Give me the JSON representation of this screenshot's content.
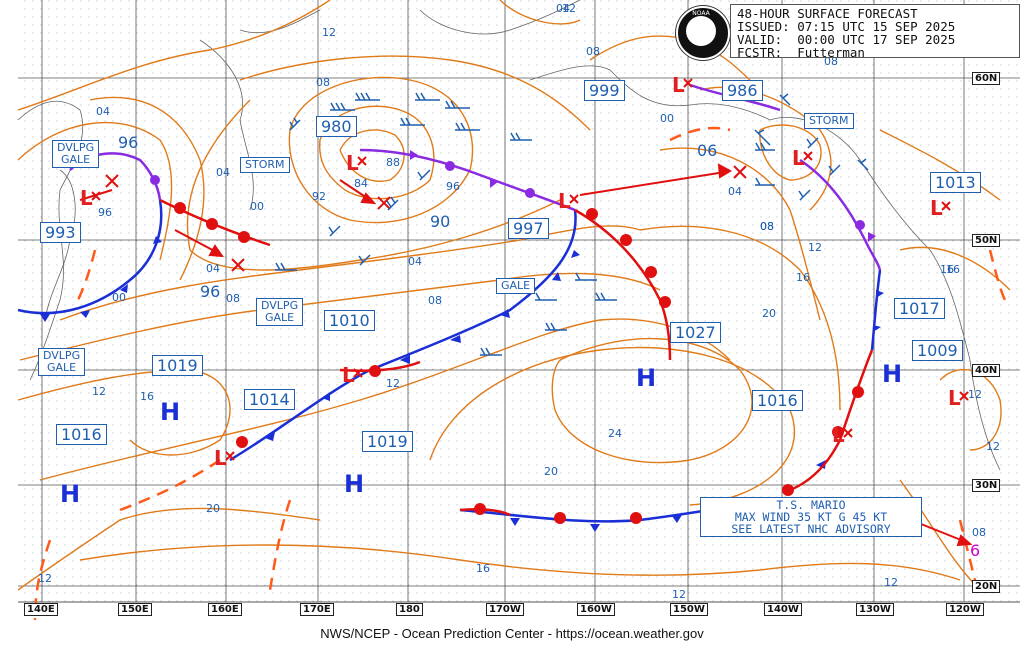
{
  "header": {
    "title": "48-HOUR SURFACE FORECAST",
    "issued": "ISSUED: 07:15 UTC 15 SEP 2025",
    "valid": "VALID:  00:00 UTC 17 SEP 2025",
    "forecaster": "FCSTR:  Futterman",
    "logo_text": "NOAA"
  },
  "footer": "NWS/NCEP - Ocean Prediction Center - https://ocean.weather.gov",
  "longitudes": [
    "140E",
    "150E",
    "160E",
    "170E",
    "180",
    "170W",
    "160W",
    "150W",
    "140W",
    "130W",
    "120W"
  ],
  "latitudes": [
    "60N",
    "50N",
    "40N",
    "30N",
    "20N"
  ],
  "warnings": {
    "dvlpg_gale_1": "DVLPG\nGALE",
    "dvlpg_gale_2": "DVLPG\nGALE",
    "dvlpg_gale_3": "DVLPG\nGALE",
    "storm_1": "STORM",
    "storm_2": "STORM",
    "gale": "GALE"
  },
  "pressures": {
    "p993": "993",
    "p1016w": "1016",
    "p1019w": "1019",
    "p1014": "1014",
    "p1010": "1010",
    "p1019c": "1019",
    "p997": "997",
    "p1027": "1027",
    "p1016e": "1016",
    "p1017": "1017",
    "p1009": "1009",
    "p1013": "1013",
    "p980": "980",
    "p999": "999",
    "p986": "986",
    "p96a": "96",
    "p96b": "96",
    "p90": "90",
    "p06": "06"
  },
  "isobar_labels": [
    "12",
    "08",
    "04",
    "00",
    "04",
    "92",
    "88",
    "84",
    "96",
    "04",
    "08",
    "08",
    "12",
    "16",
    "20",
    "24",
    "20",
    "16",
    "12",
    "12",
    "12",
    "08",
    "04",
    "00",
    "08",
    "12",
    "16",
    "20",
    "16",
    "12",
    "12",
    "08",
    "04",
    "08",
    "96",
    "00",
    "12",
    "16",
    "12",
    "04",
    "08"
  ],
  "highs": [
    "H",
    "H",
    "H",
    "H",
    "H"
  ],
  "mario": {
    "line1": "T.S. MARIO",
    "line2": "MAX WIND 35 KT G 45 KT",
    "line3": "SEE LATEST NHC ADVISORY"
  },
  "colors": {
    "isobar": "#e07b1a",
    "warm": "#e01010",
    "cold": "#1a2fd6",
    "occluded": "#8a2be2",
    "text": "#1f5fb0"
  }
}
